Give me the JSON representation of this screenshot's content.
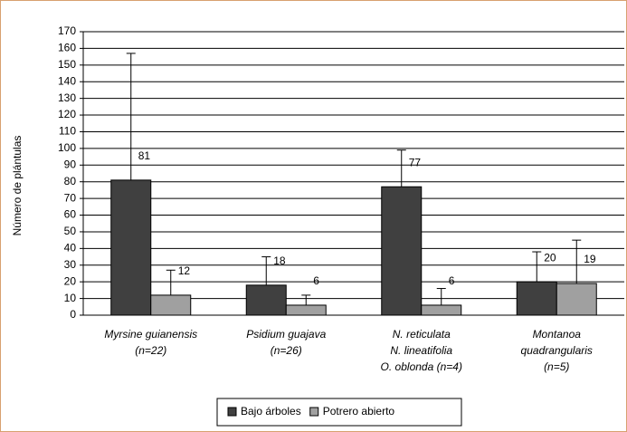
{
  "chart_data": {
    "type": "bar",
    "y_label": "Número de plántulas",
    "categories": [
      [
        "Myrsine guianensis",
        "(n=22)"
      ],
      [
        "Psidium guajava",
        "(n=26)"
      ],
      [
        "N. reticulata",
        "N. lineatifolia",
        "O. oblonda (n=4)"
      ],
      [
        "Montanoa",
        "quadrangularis",
        "(n=5)"
      ]
    ],
    "series": [
      {
        "name": "Bajo árboles",
        "color": "#404040",
        "values": [
          81,
          18,
          77,
          20
        ],
        "errors": [
          76,
          17,
          22,
          18
        ]
      },
      {
        "name": "Potrero abierto",
        "color": "#a0a0a0",
        "values": [
          12,
          6,
          6,
          19
        ],
        "errors": [
          15,
          6,
          10,
          26
        ]
      }
    ],
    "ylim": [
      0,
      170
    ],
    "yticks": [
      0,
      10,
      20,
      30,
      40,
      50,
      60,
      70,
      80,
      90,
      100,
      110,
      120,
      130,
      140,
      150,
      160,
      170
    ],
    "grid": true,
    "legend": "bottom"
  }
}
